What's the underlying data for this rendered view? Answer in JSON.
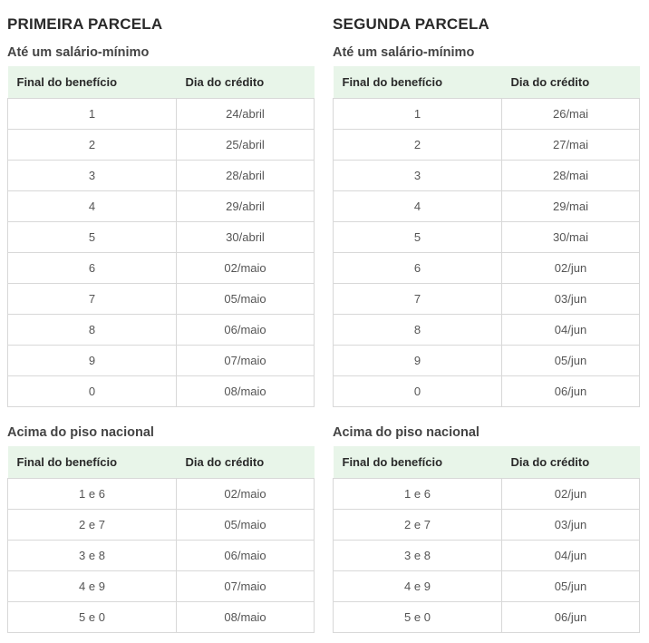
{
  "colors": {
    "header_bg": "#e8f5e9",
    "border": "#d8d8d8"
  },
  "first": {
    "title": "PRIMEIRA PARCELA",
    "min": {
      "subtitle": "Até um salário-mínimo",
      "headers": [
        "Final do benefício",
        "Dia do crédito"
      ],
      "rows": [
        [
          "1",
          "24/abril"
        ],
        [
          "2",
          "25/abril"
        ],
        [
          "3",
          "28/abril"
        ],
        [
          "4",
          "29/abril"
        ],
        [
          "5",
          "30/abril"
        ],
        [
          "6",
          "02/maio"
        ],
        [
          "7",
          "05/maio"
        ],
        [
          "8",
          "06/maio"
        ],
        [
          "9",
          "07/maio"
        ],
        [
          "0",
          "08/maio"
        ]
      ]
    },
    "above": {
      "subtitle": "Acima do piso nacional",
      "headers": [
        "Final do benefício",
        "Dia do crédito"
      ],
      "rows": [
        [
          "1 e 6",
          "02/maio"
        ],
        [
          "2 e 7",
          "05/maio"
        ],
        [
          "3 e 8",
          "06/maio"
        ],
        [
          "4 e 9",
          "07/maio"
        ],
        [
          "5 e 0",
          "08/maio"
        ]
      ]
    }
  },
  "second": {
    "title": "SEGUNDA PARCELA",
    "min": {
      "subtitle": "Até um salário-mínimo",
      "headers": [
        "Final do benefício",
        "Dia do crédito"
      ],
      "rows": [
        [
          "1",
          "26/mai"
        ],
        [
          "2",
          "27/mai"
        ],
        [
          "3",
          "28/mai"
        ],
        [
          "4",
          "29/mai"
        ],
        [
          "5",
          "30/mai"
        ],
        [
          "6",
          "02/jun"
        ],
        [
          "7",
          "03/jun"
        ],
        [
          "8",
          "04/jun"
        ],
        [
          "9",
          "05/jun"
        ],
        [
          "0",
          "06/jun"
        ]
      ]
    },
    "above": {
      "subtitle": "Acima do piso nacional",
      "headers": [
        "Final do benefício",
        "Dia do crédito"
      ],
      "rows": [
        [
          "1 e 6",
          "02/jun"
        ],
        [
          "2 e 7",
          "03/jun"
        ],
        [
          "3 e 8",
          "04/jun"
        ],
        [
          "4 e 9",
          "05/jun"
        ],
        [
          "5 e 0",
          "06/jun"
        ]
      ]
    }
  }
}
